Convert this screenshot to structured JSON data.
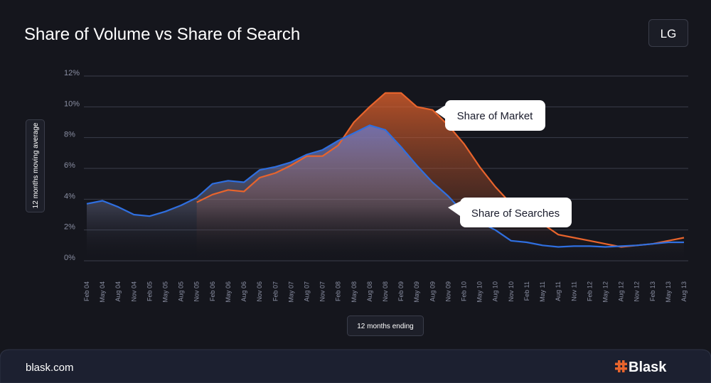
{
  "chart_data": {
    "type": "line",
    "title": "Share of Volume vs Share of Search",
    "badge": "LG",
    "y_label": "12 months moving average",
    "x_label": "12 months ending",
    "categories": [
      "Feb 04",
      "May 04",
      "Aug 04",
      "Nov 04",
      "Feb 05",
      "May 05",
      "Aug 05",
      "Nov 05",
      "Feb 06",
      "May 06",
      "Aug 06",
      "Nov 06",
      "Feb 07",
      "May 07",
      "Aug 07",
      "Nov 07",
      "Feb 08",
      "May 08",
      "Aug 08",
      "Nov 08",
      "Feb 09",
      "May 09",
      "Aug 09",
      "Nov 09",
      "Feb 10",
      "May 10",
      "Aug 10",
      "Nov 10",
      "Feb 11",
      "May 11",
      "Aug 11",
      "Nov 11",
      "Feb 12",
      "May 12",
      "Aug 12",
      "Nov 12",
      "Feb 13",
      "May 13",
      "Aug 13"
    ],
    "series": [
      {
        "name": "Share of Market",
        "color": "#e8642c",
        "values": [
          null,
          null,
          null,
          null,
          null,
          null,
          null,
          3.8,
          4.3,
          4.6,
          4.5,
          5.4,
          5.7,
          6.2,
          6.8,
          6.8,
          7.5,
          9.0,
          10.0,
          10.9,
          10.9,
          10.0,
          9.8,
          8.8,
          7.6,
          6.1,
          4.8,
          3.7,
          3.3,
          2.4,
          1.7,
          1.5,
          1.3,
          1.1,
          0.9,
          1.0,
          1.1,
          1.3,
          1.5
        ]
      },
      {
        "name": "Share of Searches",
        "color": "#2f6fe0",
        "values": [
          3.7,
          3.9,
          3.5,
          3.0,
          2.9,
          3.2,
          3.6,
          4.1,
          5.0,
          5.2,
          5.1,
          5.9,
          6.1,
          6.4,
          6.9,
          7.2,
          7.8,
          8.3,
          8.8,
          8.5,
          7.4,
          6.2,
          5.1,
          4.2,
          3.1,
          2.5,
          2.0,
          1.3,
          1.2,
          1.0,
          0.9,
          0.95,
          0.95,
          0.9,
          0.95,
          1.0,
          1.1,
          1.2,
          1.2
        ]
      }
    ],
    "ylim": [
      0,
      12
    ],
    "yticks": [
      {
        "value": 0,
        "label": "0%"
      },
      {
        "value": 2,
        "label": "2%"
      },
      {
        "value": 4,
        "label": "4%"
      },
      {
        "value": 6,
        "label": "6%"
      },
      {
        "value": 8,
        "label": "8%"
      },
      {
        "value": 10,
        "label": "10%"
      },
      {
        "value": 12,
        "label": "12%"
      }
    ],
    "grid": true
  },
  "footer": {
    "site": "blask.com",
    "logo": "Blask"
  }
}
